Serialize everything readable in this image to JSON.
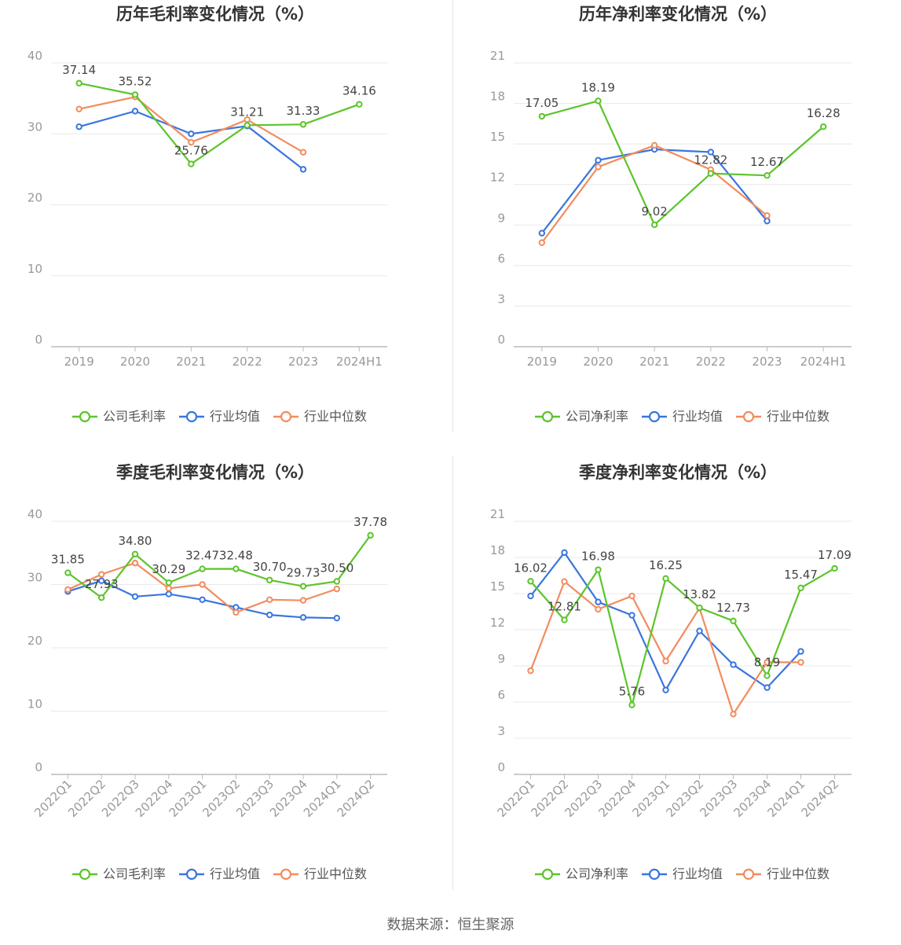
{
  "source_label": "数据来源：恒生聚源",
  "colors": {
    "company": "#5cc42b",
    "avg": "#3a75de",
    "median": "#f28c5e",
    "grid": "#e8e8e8",
    "axis": "#999999",
    "label": "#444444"
  },
  "chart_data": [
    {
      "type": "line",
      "title": "历年毛利率变化情况（%）",
      "categories": [
        "2019",
        "2020",
        "2021",
        "2022",
        "2023",
        "2024H1"
      ],
      "ylim": [
        0,
        40
      ],
      "yticks": [
        0,
        10,
        20,
        30,
        40
      ],
      "grid": true,
      "legend_position": "bottom-center",
      "rotate_xticks": false,
      "series": [
        {
          "name": "公司毛利率",
          "color": "#5cc42b",
          "values": [
            37.14,
            35.52,
            25.76,
            31.21,
            31.33,
            34.16
          ],
          "labels": [
            "37.14",
            "35.52",
            "25.76",
            "31.21",
            "31.33",
            "34.16"
          ]
        },
        {
          "name": "行业均值",
          "color": "#3a75de",
          "values": [
            31.0,
            33.2,
            30.0,
            31.1,
            25.0,
            null
          ]
        },
        {
          "name": "行业中位数",
          "color": "#f28c5e",
          "values": [
            33.5,
            35.2,
            28.8,
            32.0,
            27.4,
            null
          ]
        }
      ]
    },
    {
      "type": "line",
      "title": "历年净利率变化情况（%）",
      "categories": [
        "2019",
        "2020",
        "2021",
        "2022",
        "2023",
        "2024H1"
      ],
      "ylim": [
        0,
        21
      ],
      "yticks": [
        0,
        3,
        6,
        9,
        12,
        15,
        18,
        21
      ],
      "grid": true,
      "legend_position": "bottom-center",
      "rotate_xticks": false,
      "series": [
        {
          "name": "公司净利率",
          "color": "#5cc42b",
          "values": [
            17.05,
            18.19,
            9.02,
            12.82,
            12.67,
            16.28
          ],
          "labels": [
            "17.05",
            "18.19",
            "9.02",
            "12.82",
            "12.67",
            "16.28"
          ]
        },
        {
          "name": "行业均值",
          "color": "#3a75de",
          "values": [
            8.4,
            13.8,
            14.6,
            14.4,
            9.3,
            null
          ]
        },
        {
          "name": "行业中位数",
          "color": "#f28c5e",
          "values": [
            7.7,
            13.3,
            14.9,
            13.1,
            9.7,
            null
          ]
        }
      ]
    },
    {
      "type": "line",
      "title": "季度毛利率变化情况（%）",
      "categories": [
        "2022Q1",
        "2022Q2",
        "2022Q3",
        "2022Q4",
        "2023Q1",
        "2023Q2",
        "2023Q3",
        "2023Q4",
        "2024Q1",
        "2024Q2"
      ],
      "ylim": [
        0,
        40
      ],
      "yticks": [
        0,
        10,
        20,
        30,
        40
      ],
      "grid": true,
      "legend_position": "bottom-center",
      "rotate_xticks": true,
      "series": [
        {
          "name": "公司毛利率",
          "color": "#5cc42b",
          "values": [
            31.85,
            27.93,
            34.8,
            30.29,
            32.47,
            32.48,
            30.7,
            29.73,
            30.5,
            37.78
          ],
          "labels": [
            "31.85",
            "27.93",
            "34.80",
            "30.29",
            "32.47",
            "32.48",
            "30.70",
            "29.73",
            "30.50",
            "37.78"
          ]
        },
        {
          "name": "行业均值",
          "color": "#3a75de",
          "values": [
            28.9,
            30.6,
            28.1,
            28.5,
            27.6,
            26.4,
            25.2,
            24.8,
            24.7,
            null
          ]
        },
        {
          "name": "行业中位数",
          "color": "#f28c5e",
          "values": [
            29.2,
            31.6,
            33.4,
            29.4,
            30.0,
            25.6,
            27.6,
            27.5,
            29.3,
            null
          ]
        }
      ]
    },
    {
      "type": "line",
      "title": "季度净利率变化情况（%）",
      "categories": [
        "2022Q1",
        "2022Q2",
        "2022Q3",
        "2022Q4",
        "2023Q1",
        "2023Q2",
        "2023Q3",
        "2023Q4",
        "2024Q1",
        "2024Q2"
      ],
      "ylim": [
        0,
        21
      ],
      "yticks": [
        0,
        3,
        6,
        9,
        12,
        15,
        18,
        21
      ],
      "grid": true,
      "legend_position": "bottom-center",
      "rotate_xticks": true,
      "series": [
        {
          "name": "公司净利率",
          "color": "#5cc42b",
          "values": [
            16.02,
            12.81,
            16.98,
            5.76,
            16.25,
            13.82,
            12.73,
            8.19,
            15.47,
            17.09
          ],
          "labels": [
            "16.02",
            "12.81",
            "16.98",
            "5.76",
            "16.25",
            "13.82",
            "12.73",
            "8.19",
            "15.47",
            "17.09"
          ]
        },
        {
          "name": "行业均值",
          "color": "#3a75de",
          "values": [
            14.8,
            18.4,
            14.3,
            13.2,
            7.0,
            11.9,
            9.1,
            7.2,
            10.2,
            null
          ]
        },
        {
          "name": "行业中位数",
          "color": "#f28c5e",
          "values": [
            8.6,
            16.0,
            13.7,
            14.8,
            9.4,
            13.8,
            5.0,
            9.3,
            9.3,
            null
          ]
        }
      ]
    }
  ]
}
